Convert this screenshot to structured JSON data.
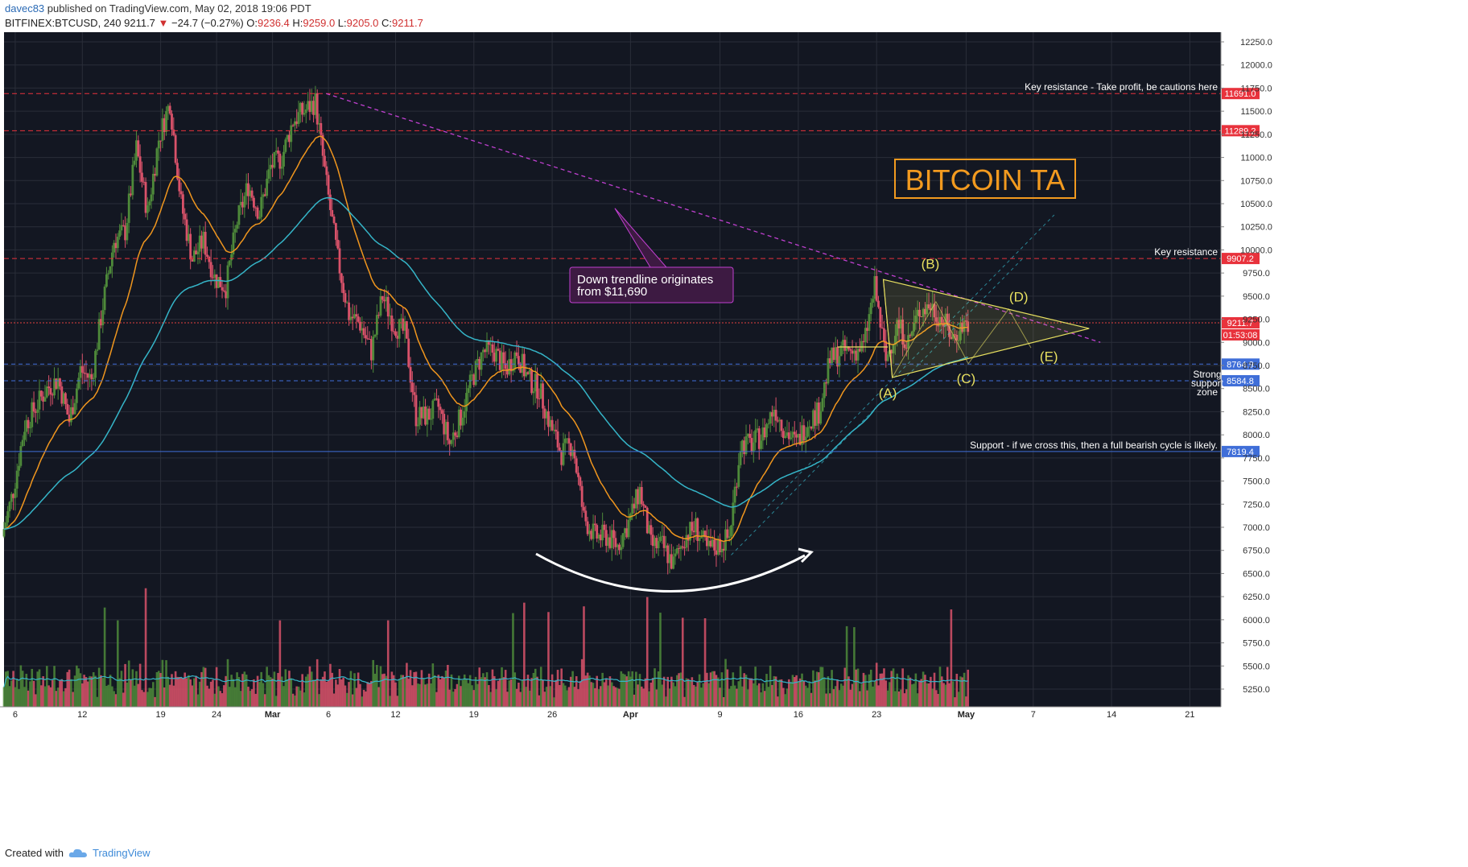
{
  "header": {
    "user": "davec83",
    "published": "published on TradingView.com, May 02, 2018 19:06 PDT",
    "symbol": "BITFINEX:BTCUSD, 240",
    "last": "9211.7",
    "arrow": "▼",
    "change": "−24.7 (−0.27%)",
    "o_label": "O:",
    "o": "9236.4",
    "h_label": "H:",
    "h": "9259.0",
    "l_label": "L:",
    "l": "9205.0",
    "c_label": "C:",
    "c": "9211.7"
  },
  "footer": {
    "created": "Created with",
    "brand": "TradingView",
    "logo_icon": "tradingview-cloud-icon"
  },
  "colors": {
    "background": "#131722",
    "grid": "#2a2e39",
    "up": "#4e8a3a",
    "down": "#d9526a",
    "ema_fast": "#f0961e",
    "ema_slow": "#35b5c8",
    "resistance": "#e8323c",
    "support": "#3f6ed8",
    "trendline": "#c040d0",
    "pattern": "#e8e060",
    "title_box": "#f29a1f"
  },
  "chart_data": {
    "type": "candlestick",
    "title": "BITCOIN TA",
    "ylim": [
      5000,
      12400
    ],
    "y_ticks": [
      "12250.0",
      "12000.0",
      "11750.0",
      "11500.0",
      "11250.0",
      "11000.0",
      "10750.0",
      "10500.0",
      "10250.0",
      "10000.0",
      "9750.0",
      "9500.0",
      "9250.0",
      "9000.0",
      "8750.0",
      "8500.0",
      "8250.0",
      "8000.0",
      "7750.0",
      "7500.0",
      "7250.0",
      "7000.0",
      "6750.0",
      "6500.0",
      "6250.0",
      "6000.0",
      "5750.0",
      "5500.0",
      "5250.0"
    ],
    "x_ticks": [
      {
        "label": "6",
        "day": 6,
        "bold": false
      },
      {
        "label": "12",
        "day": 12,
        "bold": false
      },
      {
        "label": "19",
        "day": 19,
        "bold": false
      },
      {
        "label": "24",
        "day": 24,
        "bold": false
      },
      {
        "label": "Mar",
        "day": 29,
        "bold": true
      },
      {
        "label": "6",
        "day": 34,
        "bold": false
      },
      {
        "label": "12",
        "day": 40,
        "bold": false
      },
      {
        "label": "19",
        "day": 47,
        "bold": false
      },
      {
        "label": "26",
        "day": 54,
        "bold": false
      },
      {
        "label": "Apr",
        "day": 61,
        "bold": true
      },
      {
        "label": "9",
        "day": 69,
        "bold": false
      },
      {
        "label": "16",
        "day": 76,
        "bold": false
      },
      {
        "label": "23",
        "day": 83,
        "bold": false
      },
      {
        "label": "May",
        "day": 91,
        "bold": true
      },
      {
        "label": "7",
        "day": 97,
        "bold": false
      },
      {
        "label": "14",
        "day": 104,
        "bold": false
      },
      {
        "label": "21",
        "day": 111,
        "bold": false
      }
    ],
    "price_path": [
      [
        "2018-02-05",
        6900
      ],
      [
        "2018-02-06",
        7400
      ],
      [
        "2018-02-07",
        8100
      ],
      [
        "2018-02-08",
        8300
      ],
      [
        "2018-02-09",
        8500
      ],
      [
        "2018-02-10",
        8600
      ],
      [
        "2018-02-11",
        8150
      ],
      [
        "2018-02-12",
        8700
      ],
      [
        "2018-02-13",
        8600
      ],
      [
        "2018-02-14",
        9400
      ],
      [
        "2018-02-15",
        10100
      ],
      [
        "2018-02-16",
        10200
      ],
      [
        "2018-02-17",
        11100
      ],
      [
        "2018-02-18",
        10400
      ],
      [
        "2018-02-19",
        11200
      ],
      [
        "2018-02-20",
        11600
      ],
      [
        "2018-02-21",
        10500
      ],
      [
        "2018-02-22",
        9900
      ],
      [
        "2018-02-23",
        10100
      ],
      [
        "2018-02-24",
        9700
      ],
      [
        "2018-02-25",
        9600
      ],
      [
        "2018-02-26",
        10300
      ],
      [
        "2018-02-27",
        10700
      ],
      [
        "2018-02-28",
        10400
      ],
      [
        "2018-03-01",
        10900
      ],
      [
        "2018-03-02",
        11000
      ],
      [
        "2018-03-03",
        11400
      ],
      [
        "2018-03-04",
        11500
      ],
      [
        "2018-03-05",
        11600
      ],
      [
        "2018-03-06",
        10700
      ],
      [
        "2018-03-07",
        9900
      ],
      [
        "2018-03-08",
        9300
      ],
      [
        "2018-03-09",
        9200
      ],
      [
        "2018-03-10",
        8900
      ],
      [
        "2018-03-11",
        9500
      ],
      [
        "2018-03-12",
        9200
      ],
      [
        "2018-03-13",
        9100
      ],
      [
        "2018-03-14",
        8200
      ],
      [
        "2018-03-15",
        8200
      ],
      [
        "2018-03-16",
        8300
      ],
      [
        "2018-03-17",
        7900
      ],
      [
        "2018-03-18",
        8200
      ],
      [
        "2018-03-19",
        8600
      ],
      [
        "2018-03-20",
        8900
      ],
      [
        "2018-03-21",
        8900
      ],
      [
        "2018-03-22",
        8700
      ],
      [
        "2018-03-23",
        8900
      ],
      [
        "2018-03-24",
        8600
      ],
      [
        "2018-03-25",
        8500
      ],
      [
        "2018-03-26",
        8100
      ],
      [
        "2018-03-27",
        7800
      ],
      [
        "2018-03-28",
        7900
      ],
      [
        "2018-03-29",
        7100
      ],
      [
        "2018-03-30",
        6900
      ],
      [
        "2018-03-31",
        6900
      ],
      [
        "2018-04-01",
        6800
      ],
      [
        "2018-04-02",
        7050
      ],
      [
        "2018-04-03",
        7400
      ],
      [
        "2018-04-04",
        6800
      ],
      [
        "2018-04-05",
        6800
      ],
      [
        "2018-04-06",
        6600
      ],
      [
        "2018-04-07",
        6900
      ],
      [
        "2018-04-08",
        7000
      ],
      [
        "2018-04-09",
        6750
      ],
      [
        "2018-04-10",
        6800
      ],
      [
        "2018-04-11",
        6900
      ],
      [
        "2018-04-12",
        7900
      ],
      [
        "2018-04-13",
        7900
      ],
      [
        "2018-04-14",
        8000
      ],
      [
        "2018-04-15",
        8300
      ],
      [
        "2018-04-16",
        8050
      ],
      [
        "2018-04-17",
        7900
      ],
      [
        "2018-04-18",
        8150
      ],
      [
        "2018-04-19",
        8250
      ],
      [
        "2018-04-20",
        8800
      ],
      [
        "2018-04-21",
        8900
      ],
      [
        "2018-04-22",
        8900
      ],
      [
        "2018-04-23",
        8950
      ],
      [
        "2018-04-24",
        9600
      ],
      [
        "2018-04-25",
        8800
      ],
      [
        "2018-04-26",
        9200
      ],
      [
        "2018-04-27",
        9000
      ],
      [
        "2018-04-28",
        9350
      ],
      [
        "2018-04-29",
        9400
      ],
      [
        "2018-04-30",
        9250
      ],
      [
        "2018-05-01",
        9050
      ],
      [
        "2018-05-02",
        9211.7
      ]
    ],
    "horizontal_levels": [
      {
        "price": 11691.0,
        "label": "11691.0",
        "text": "Key resistance - Take profit, be cautions here",
        "style": "resistance"
      },
      {
        "price": 11289.2,
        "label": "11289.2",
        "text": "",
        "style": "resistance"
      },
      {
        "price": 9907.2,
        "label": "9907.2",
        "text": "Key resistance",
        "style": "resistance"
      },
      {
        "price": 9211.7,
        "label": "9211.7",
        "text": "",
        "style": "current"
      },
      {
        "price": 8764.9,
        "label": "8764.9",
        "text": "",
        "style": "support"
      },
      {
        "price": 8584.8,
        "label": "8584.8",
        "text": "",
        "style": "support"
      },
      {
        "price": 7819.4,
        "label": "7819.4",
        "text": "Support - if we cross this, then a full bearish cycle is likely.",
        "style": "support_solid"
      }
    ],
    "countdown": "01:53:08",
    "support_zone_text": [
      "Strong",
      "support",
      "zone"
    ],
    "trendline_callout": [
      "Down trendline originates",
      "from $11,690"
    ],
    "wave_labels": [
      "(A)",
      "(B)",
      "(C)",
      "(D)",
      "(E)"
    ]
  }
}
